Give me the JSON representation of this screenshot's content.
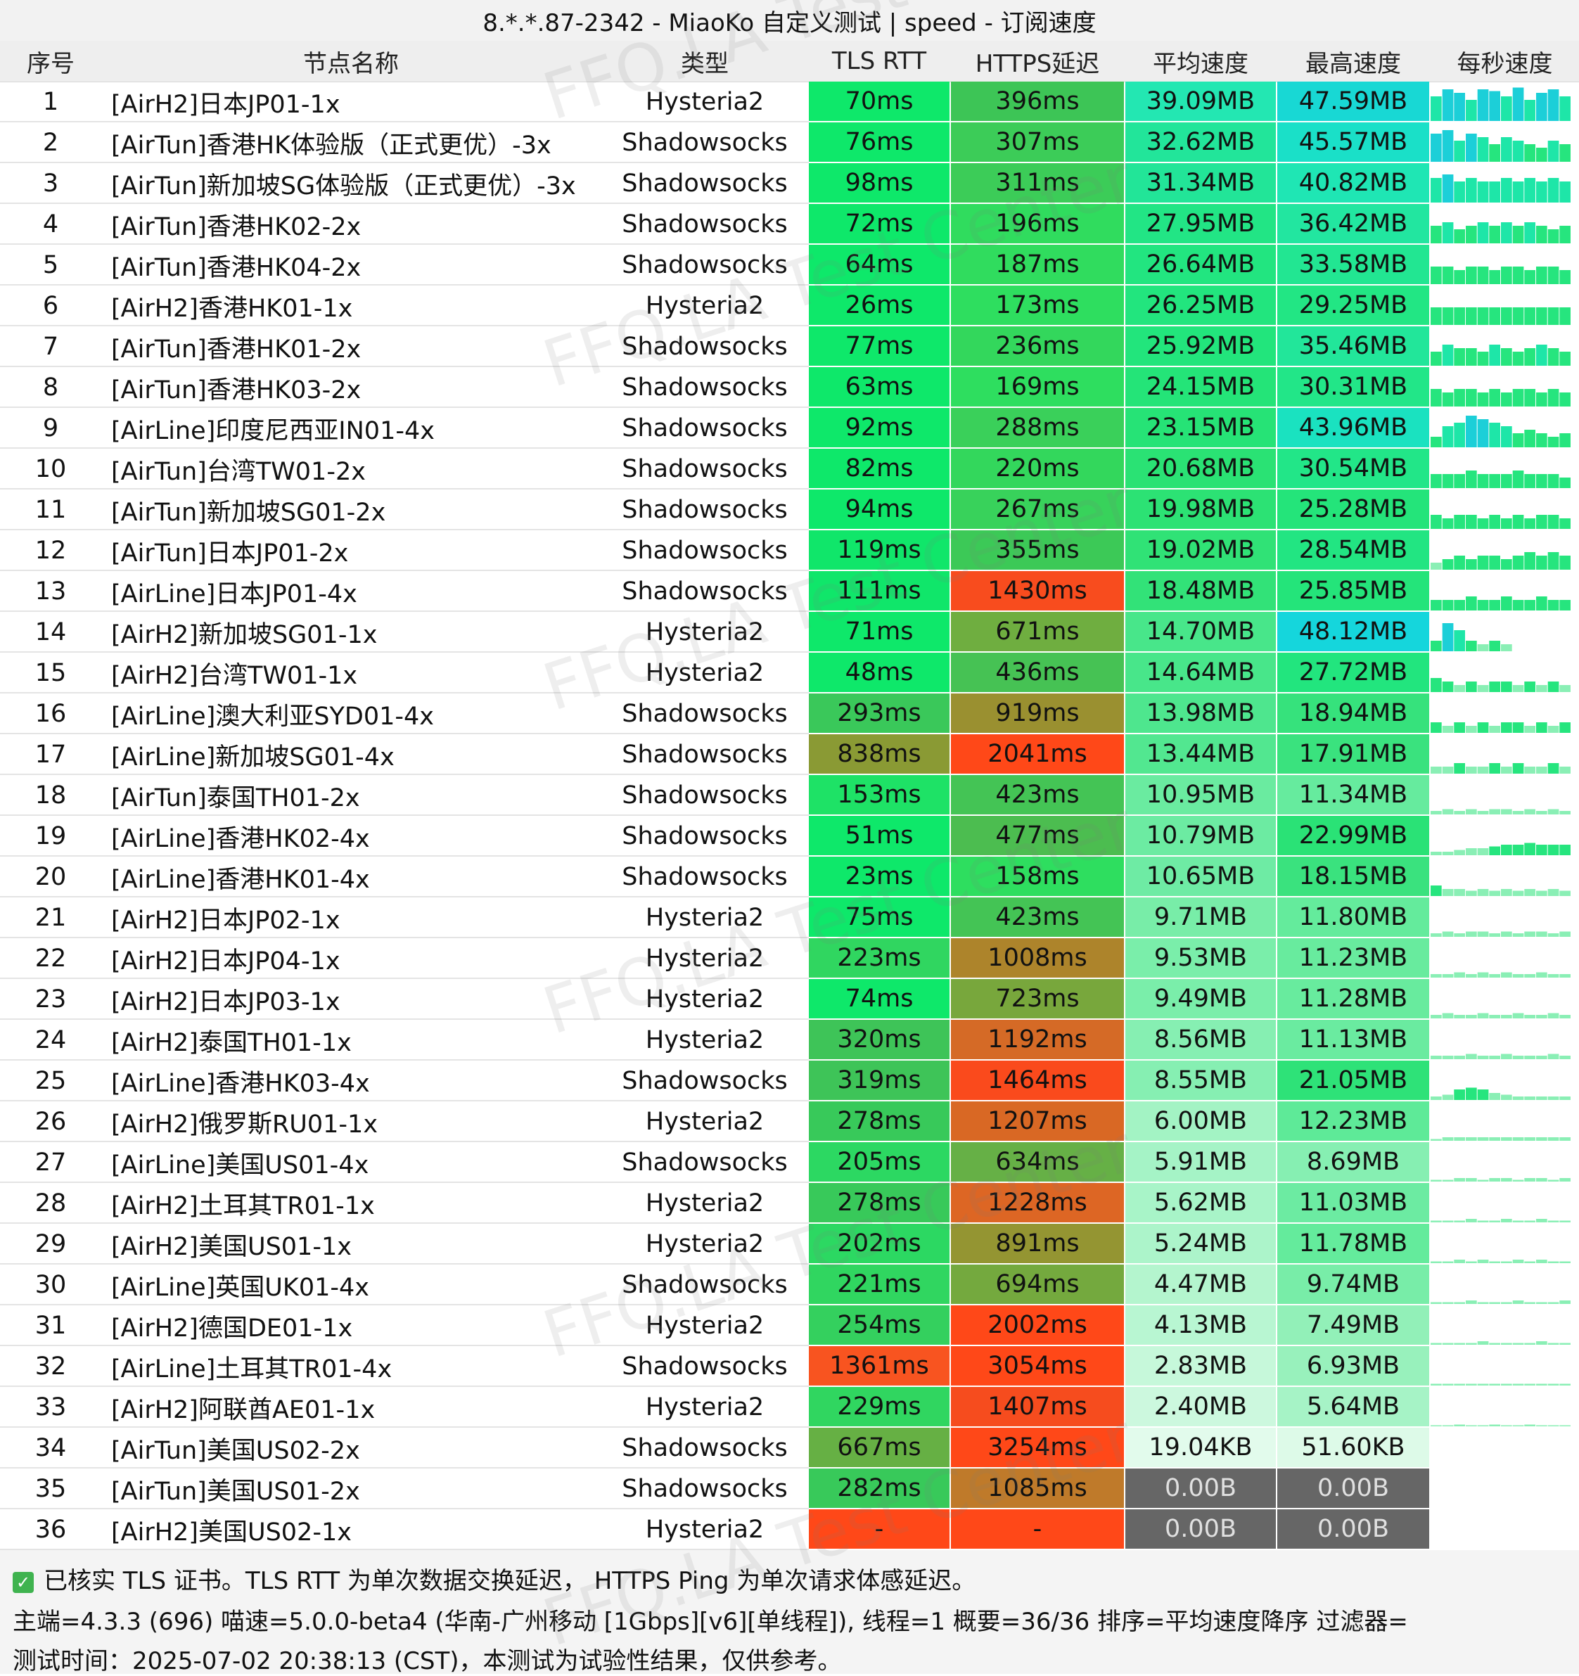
{
  "title": "8.*.*.87-2342 - MiaoKo 自定义测试 | speed - 订阅速度",
  "columns": [
    "序号",
    "节点名称",
    "类型",
    "TLS RTT",
    "HTTPS延迟",
    "平均速度",
    "最高速度",
    "每秒速度"
  ],
  "watermark": "FFQ.LA Test Center",
  "colors": {
    "latency_good": "#0ee86a",
    "latency_mid": "#6faa3a",
    "latency_high": "#b87a2a",
    "latency_bad": "#ff4a1a",
    "speed_fast": "#20e4c9",
    "speed_mid": "#22e07a",
    "speed_slow": "#aaf2c3",
    "speed_zero": "#666666"
  },
  "rows": [
    {
      "idx": "1",
      "name": "[AirH2]日本JP01-1x",
      "type": "Hysteria2",
      "tls": "70ms",
      "https": "396ms",
      "avg": "39.09MB",
      "max": "47.59MB",
      "tls_c": "#0ee86a",
      "https_c": "#3dc556",
      "avg_c": "#23e7b2",
      "max_c": "#18d8d4"
    },
    {
      "idx": "2",
      "name": "[AirTun]香港HK体验版（正式更优）-3x",
      "type": "Shadowsocks",
      "tls": "76ms",
      "https": "307ms",
      "avg": "32.62MB",
      "max": "45.57MB",
      "tls_c": "#0ee86a",
      "https_c": "#3ccc58",
      "avg_c": "#22e59a",
      "max_c": "#1ae0c8"
    },
    {
      "idx": "3",
      "name": "[AirTun]新加坡SG体验版（正式更优）-3x",
      "type": "Shadowsocks",
      "tls": "98ms",
      "https": "311ms",
      "avg": "31.34MB",
      "max": "40.82MB",
      "tls_c": "#0ee86a",
      "https_c": "#3ccc58",
      "avg_c": "#22e598",
      "max_c": "#1fe6b4"
    },
    {
      "idx": "4",
      "name": "[AirTun]香港HK02-2x",
      "type": "Shadowsocks",
      "tls": "72ms",
      "https": "196ms",
      "avg": "27.95MB",
      "max": "36.42MB",
      "tls_c": "#0ee86a",
      "https_c": "#30dc5e",
      "avg_c": "#22e585",
      "max_c": "#22e6a0"
    },
    {
      "idx": "5",
      "name": "[AirTun]香港HK04-2x",
      "type": "Shadowsocks",
      "tls": "64ms",
      "https": "187ms",
      "avg": "26.64MB",
      "max": "33.58MB",
      "tls_c": "#0ee86a",
      "https_c": "#30dc5e",
      "avg_c": "#22e580",
      "max_c": "#22e692"
    },
    {
      "idx": "6",
      "name": "[AirH2]香港HK01-1x",
      "type": "Hysteria2",
      "tls": "26ms",
      "https": "173ms",
      "avg": "26.25MB",
      "max": "29.25MB",
      "tls_c": "#0ee86a",
      "https_c": "#2ede5f",
      "avg_c": "#22e57e",
      "max_c": "#22e684"
    },
    {
      "idx": "7",
      "name": "[AirTun]香港HK01-2x",
      "type": "Shadowsocks",
      "tls": "77ms",
      "https": "236ms",
      "avg": "25.92MB",
      "max": "35.46MB",
      "tls_c": "#0ee86a",
      "https_c": "#33d75c",
      "avg_c": "#22e57c",
      "max_c": "#22e69a"
    },
    {
      "idx": "8",
      "name": "[AirTun]香港HK03-2x",
      "type": "Shadowsocks",
      "tls": "63ms",
      "https": "169ms",
      "avg": "24.15MB",
      "max": "30.31MB",
      "tls_c": "#0ee86a",
      "https_c": "#2ede5f",
      "avg_c": "#24e478",
      "max_c": "#22e688"
    },
    {
      "idx": "9",
      "name": "[AirLine]印度尼西亚IN01-4x",
      "type": "Shadowsocks",
      "tls": "92ms",
      "https": "288ms",
      "avg": "23.15MB",
      "max": "43.96MB",
      "tls_c": "#0ee86a",
      "https_c": "#3ad05a",
      "avg_c": "#26e376",
      "max_c": "#1ae2c0"
    },
    {
      "idx": "10",
      "name": "[AirTun]台湾TW01-2x",
      "type": "Shadowsocks",
      "tls": "82ms",
      "https": "220ms",
      "avg": "20.68MB",
      "max": "30.54MB",
      "tls_c": "#0ee86a",
      "https_c": "#33d75c",
      "avg_c": "#2ae274",
      "max_c": "#22e688"
    },
    {
      "idx": "11",
      "name": "[AirTun]新加坡SG01-2x",
      "type": "Shadowsocks",
      "tls": "94ms",
      "https": "267ms",
      "avg": "19.98MB",
      "max": "25.28MB",
      "tls_c": "#0ee86a",
      "https_c": "#38d25b",
      "avg_c": "#2ce274",
      "max_c": "#24e47a"
    },
    {
      "idx": "12",
      "name": "[AirTun]日本JP01-2x",
      "type": "Shadowsocks",
      "tls": "119ms",
      "https": "355ms",
      "avg": "19.02MB",
      "max": "28.54MB",
      "tls_c": "#10e66a",
      "https_c": "#3cc957",
      "avg_c": "#30e276",
      "max_c": "#22e582"
    },
    {
      "idx": "13",
      "name": "[AirLine]日本JP01-4x",
      "type": "Shadowsocks",
      "tls": "111ms",
      "https": "1430ms",
      "avg": "18.48MB",
      "max": "25.85MB",
      "tls_c": "#10e66a",
      "https_c": "#f84c1e",
      "avg_c": "#32e278",
      "max_c": "#24e47a"
    },
    {
      "idx": "14",
      "name": "[AirH2]新加坡SG01-1x",
      "type": "Hysteria2",
      "tls": "71ms",
      "https": "671ms",
      "avg": "14.70MB",
      "max": "48.12MB",
      "tls_c": "#0ee86a",
      "https_c": "#6fae40",
      "avg_c": "#48e68a",
      "max_c": "#15d6dc"
    },
    {
      "idx": "15",
      "name": "[AirH2]台湾TW01-1x",
      "type": "Hysteria2",
      "tls": "48ms",
      "https": "436ms",
      "avg": "14.64MB",
      "max": "27.72MB",
      "tls_c": "#0ee86a",
      "https_c": "#46c254",
      "avg_c": "#48e68a",
      "max_c": "#22e57e"
    },
    {
      "idx": "16",
      "name": "[AirLine]澳大利亚SYD01-4x",
      "type": "Shadowsocks",
      "tls": "293ms",
      "https": "919ms",
      "avg": "13.98MB",
      "max": "18.94MB",
      "tls_c": "#3ac85a",
      "https_c": "#9a9030",
      "avg_c": "#4ee68e",
      "max_c": "#36e27c"
    },
    {
      "idx": "17",
      "name": "[AirLine]新加坡SG01-4x",
      "type": "Shadowsocks",
      "tls": "838ms",
      "https": "2041ms",
      "avg": "13.44MB",
      "max": "17.91MB",
      "tls_c": "#8a9a34",
      "https_c": "#ff4818",
      "avg_c": "#52e790",
      "max_c": "#3ae27e"
    },
    {
      "idx": "18",
      "name": "[AirTun]泰国TH01-2x",
      "type": "Shadowsocks",
      "tls": "153ms",
      "https": "423ms",
      "avg": "10.95MB",
      "max": "11.34MB",
      "tls_c": "#1ee266",
      "https_c": "#44c455",
      "avg_c": "#6aeba0",
      "max_c": "#66eb9e"
    },
    {
      "idx": "19",
      "name": "[AirLine]香港HK02-4x",
      "type": "Shadowsocks",
      "tls": "51ms",
      "https": "477ms",
      "avg": "10.79MB",
      "max": "22.99MB",
      "tls_c": "#0ee86a",
      "https_c": "#4cbd50",
      "avg_c": "#6ceba2",
      "max_c": "#2ae276"
    },
    {
      "idx": "20",
      "name": "[AirLine]香港HK01-4x",
      "type": "Shadowsocks",
      "tls": "23ms",
      "https": "158ms",
      "avg": "10.65MB",
      "max": "18.15MB",
      "tls_c": "#0ee86a",
      "https_c": "#2ede5f",
      "avg_c": "#6eeba4",
      "max_c": "#3ae27e"
    },
    {
      "idx": "21",
      "name": "[AirH2]日本JP02-1x",
      "type": "Hysteria2",
      "tls": "75ms",
      "https": "423ms",
      "avg": "9.71MB",
      "max": "11.80MB",
      "tls_c": "#0ee86a",
      "https_c": "#44c455",
      "avg_c": "#78eda8",
      "max_c": "#64eb9c"
    },
    {
      "idx": "22",
      "name": "[AirH2]日本JP04-1x",
      "type": "Hysteria2",
      "tls": "223ms",
      "https": "1008ms",
      "avg": "9.53MB",
      "max": "11.23MB",
      "tls_c": "#30d660",
      "https_c": "#ad842b",
      "avg_c": "#7aeeaa",
      "max_c": "#68eb9e"
    },
    {
      "idx": "23",
      "name": "[AirH2]日本JP03-1x",
      "type": "Hysteria2",
      "tls": "74ms",
      "https": "723ms",
      "avg": "9.49MB",
      "max": "11.28MB",
      "tls_c": "#0ee86a",
      "https_c": "#78a73c",
      "avg_c": "#7aeeaa",
      "max_c": "#68eb9e"
    },
    {
      "idx": "24",
      "name": "[AirH2]泰国TH01-1x",
      "type": "Hysteria2",
      "tls": "320ms",
      "https": "1192ms",
      "avg": "8.56MB",
      "max": "11.13MB",
      "tls_c": "#3ec458",
      "https_c": "#d56a26",
      "avg_c": "#86efb2",
      "max_c": "#6aeba0"
    },
    {
      "idx": "25",
      "name": "[AirLine]香港HK03-4x",
      "type": "Shadowsocks",
      "tls": "319ms",
      "https": "1464ms",
      "avg": "8.55MB",
      "max": "21.05MB",
      "tls_c": "#3ec458",
      "https_c": "#fa4a1c",
      "avg_c": "#86efb2",
      "max_c": "#2ee278"
    },
    {
      "idx": "26",
      "name": "[AirH2]俄罗斯RU01-1x",
      "type": "Hysteria2",
      "tls": "278ms",
      "https": "1207ms",
      "avg": "6.00MB",
      "max": "12.23MB",
      "tls_c": "#38c95a",
      "https_c": "#d96824",
      "avg_c": "#a3f3c4",
      "max_c": "#5eea98"
    },
    {
      "idx": "27",
      "name": "[AirLine]美国US01-4x",
      "type": "Shadowsocks",
      "tls": "205ms",
      "https": "634ms",
      "avg": "5.91MB",
      "max": "8.69MB",
      "tls_c": "#2cd862",
      "https_c": "#66b046",
      "avg_c": "#a5f3c6",
      "max_c": "#86efb2"
    },
    {
      "idx": "28",
      "name": "[AirH2]土耳其TR01-1x",
      "type": "Hysteria2",
      "tls": "278ms",
      "https": "1228ms",
      "avg": "5.62MB",
      "max": "11.03MB",
      "tls_c": "#38c95a",
      "https_c": "#dd6624",
      "avg_c": "#a8f4c8",
      "max_c": "#6ceba2"
    },
    {
      "idx": "29",
      "name": "[AirH2]美国US01-1x",
      "type": "Hysteria2",
      "tls": "202ms",
      "https": "891ms",
      "avg": "5.24MB",
      "max": "11.78MB",
      "tls_c": "#2cd862",
      "https_c": "#949532",
      "avg_c": "#acf4ca",
      "max_c": "#64eb9c"
    },
    {
      "idx": "30",
      "name": "[AirLine]英国UK01-4x",
      "type": "Shadowsocks",
      "tls": "221ms",
      "https": "694ms",
      "avg": "4.47MB",
      "max": "9.74MB",
      "tls_c": "#30d660",
      "https_c": "#74a93e",
      "avg_c": "#b4f5ce",
      "max_c": "#78eda8"
    },
    {
      "idx": "31",
      "name": "[AirH2]德国DE01-1x",
      "type": "Hysteria2",
      "tls": "254ms",
      "https": "2002ms",
      "avg": "4.13MB",
      "max": "7.49MB",
      "tls_c": "#34d05e",
      "https_c": "#ff4818",
      "avg_c": "#b8f6d2",
      "max_c": "#92f0b8"
    },
    {
      "idx": "32",
      "name": "[AirLine]土耳其TR01-4x",
      "type": "Shadowsocks",
      "tls": "1361ms",
      "https": "3054ms",
      "avg": "2.83MB",
      "max": "6.93MB",
      "tls_c": "#f85420",
      "https_c": "#ff4818",
      "avg_c": "#c6f8da",
      "max_c": "#98f1bc"
    },
    {
      "idx": "33",
      "name": "[AirH2]阿联酋AE01-1x",
      "type": "Hysteria2",
      "tls": "229ms",
      "https": "1407ms",
      "avg": "2.40MB",
      "max": "5.64MB",
      "tls_c": "#30d660",
      "https_c": "#f64c1e",
      "avg_c": "#ccf8de",
      "max_c": "#a6f3c6"
    },
    {
      "idx": "34",
      "name": "[AirTun]美国US02-2x",
      "type": "Shadowsocks",
      "tls": "667ms",
      "https": "3254ms",
      "avg": "19.04KB",
      "max": "51.60KB",
      "tls_c": "#66b044",
      "https_c": "#ff4818",
      "avg_c": "#e2fbec",
      "max_c": "#ddfae8"
    },
    {
      "idx": "35",
      "name": "[AirTun]美国US01-2x",
      "type": "Shadowsocks",
      "tls": "282ms",
      "https": "1085ms",
      "avg": "0.00B",
      "max": "0.00B",
      "tls_c": "#38c95a",
      "https_c": "#bf7a2a",
      "avg_c": "#666666",
      "max_c": "#666666"
    },
    {
      "idx": "36",
      "name": "[AirH2]美国US02-1x",
      "type": "Hysteria2",
      "tls": "-",
      "https": "-",
      "avg": "0.00B",
      "max": "0.00B",
      "tls_c": "#ff4818",
      "https_c": "#ff4818",
      "avg_c": "#666666",
      "max_c": "#666666"
    }
  ],
  "per_second_sparks": [
    [
      0.7,
      0.9,
      0.8,
      0.6,
      0.9,
      0.85,
      0.7,
      0.95,
      0.6,
      0.8,
      0.9,
      0.7
    ],
    [
      0.8,
      0.9,
      0.6,
      0.8,
      0.7,
      0.5,
      0.7,
      0.6,
      0.5,
      0.4,
      0.6,
      0.5
    ],
    [
      0.7,
      0.8,
      0.6,
      0.7,
      0.6,
      0.6,
      0.7,
      0.6,
      0.7,
      0.6,
      0.7,
      0.6
    ],
    [
      0.5,
      0.6,
      0.4,
      0.5,
      0.6,
      0.5,
      0.6,
      0.5,
      0.6,
      0.5,
      0.4,
      0.5
    ],
    [
      0.5,
      0.5,
      0.4,
      0.5,
      0.5,
      0.4,
      0.5,
      0.5,
      0.4,
      0.5,
      0.5,
      0.4
    ],
    [
      0.5,
      0.5,
      0.5,
      0.5,
      0.5,
      0.5,
      0.5,
      0.5,
      0.5,
      0.5,
      0.5,
      0.5
    ],
    [
      0.4,
      0.6,
      0.5,
      0.5,
      0.4,
      0.6,
      0.5,
      0.4,
      0.5,
      0.6,
      0.5,
      0.4
    ],
    [
      0.5,
      0.4,
      0.5,
      0.5,
      0.4,
      0.5,
      0.4,
      0.5,
      0.5,
      0.4,
      0.5,
      0.4
    ],
    [
      0.3,
      0.6,
      0.7,
      0.9,
      0.8,
      0.7,
      0.6,
      0.4,
      0.5,
      0.4,
      0.3,
      0.4
    ],
    [
      0.4,
      0.4,
      0.4,
      0.5,
      0.4,
      0.4,
      0.4,
      0.5,
      0.4,
      0.4,
      0.4,
      0.3
    ],
    [
      0.4,
      0.3,
      0.4,
      0.4,
      0.3,
      0.4,
      0.3,
      0.4,
      0.3,
      0.4,
      0.4,
      0.3
    ],
    [
      0.2,
      0.3,
      0.4,
      0.3,
      0.4,
      0.4,
      0.3,
      0.4,
      0.5,
      0.4,
      0.5,
      0.4
    ],
    [
      0.3,
      0.3,
      0.3,
      0.4,
      0.3,
      0.3,
      0.4,
      0.3,
      0.3,
      0.4,
      0.3,
      0.3
    ],
    [
      0.3,
      0.8,
      0.6,
      0.3,
      0.2,
      0.3,
      0.2,
      0.0,
      0.0,
      0.0,
      0.0,
      0.0
    ],
    [
      0.4,
      0.3,
      0.2,
      0.3,
      0.2,
      0.3,
      0.3,
      0.2,
      0.3,
      0.2,
      0.3,
      0.2
    ],
    [
      0.3,
      0.2,
      0.3,
      0.2,
      0.3,
      0.2,
      0.3,
      0.3,
      0.2,
      0.3,
      0.2,
      0.3
    ],
    [
      0.2,
      0.2,
      0.3,
      0.2,
      0.2,
      0.3,
      0.2,
      0.3,
      0.2,
      0.2,
      0.3,
      0.2
    ],
    [
      0.1,
      0.15,
      0.1,
      0.15,
      0.1,
      0.15,
      0.15,
      0.1,
      0.15,
      0.1,
      0.15,
      0.1
    ],
    [
      0.1,
      0.1,
      0.15,
      0.2,
      0.2,
      0.25,
      0.3,
      0.3,
      0.35,
      0.3,
      0.3,
      0.3
    ],
    [
      0.3,
      0.2,
      0.2,
      0.15,
      0.2,
      0.15,
      0.2,
      0.15,
      0.2,
      0.15,
      0.2,
      0.15
    ],
    [
      0.1,
      0.15,
      0.1,
      0.15,
      0.15,
      0.1,
      0.15,
      0.1,
      0.15,
      0.15,
      0.1,
      0.15
    ],
    [
      0.1,
      0.1,
      0.15,
      0.1,
      0.15,
      0.1,
      0.15,
      0.1,
      0.1,
      0.15,
      0.1,
      0.1
    ],
    [
      0.1,
      0.15,
      0.1,
      0.1,
      0.15,
      0.1,
      0.1,
      0.15,
      0.1,
      0.1,
      0.15,
      0.1
    ],
    [
      0.1,
      0.1,
      0.1,
      0.15,
      0.1,
      0.1,
      0.15,
      0.1,
      0.1,
      0.1,
      0.15,
      0.1
    ],
    [
      0.1,
      0.15,
      0.3,
      0.35,
      0.3,
      0.2,
      0.15,
      0.1,
      0.1,
      0.1,
      0.1,
      0.1
    ],
    [
      0.05,
      0.1,
      0.1,
      0.1,
      0.1,
      0.1,
      0.1,
      0.1,
      0.1,
      0.1,
      0.1,
      0.1
    ],
    [
      0.05,
      0.05,
      0.1,
      0.1,
      0.05,
      0.1,
      0.1,
      0.05,
      0.1,
      0.1,
      0.05,
      0.1
    ],
    [
      0.05,
      0.05,
      0.05,
      0.1,
      0.05,
      0.05,
      0.1,
      0.05,
      0.05,
      0.1,
      0.05,
      0.05
    ],
    [
      0.05,
      0.05,
      0.1,
      0.05,
      0.1,
      0.05,
      0.05,
      0.1,
      0.05,
      0.1,
      0.05,
      0.05
    ],
    [
      0.05,
      0.05,
      0.05,
      0.1,
      0.05,
      0.05,
      0.05,
      0.1,
      0.05,
      0.05,
      0.05,
      0.1
    ],
    [
      0.05,
      0.05,
      0.05,
      0.05,
      0.1,
      0.05,
      0.05,
      0.05,
      0.05,
      0.1,
      0.05,
      0.05
    ],
    [
      0.05,
      0.05,
      0.05,
      0.05,
      0.05,
      0.05,
      0.05,
      0.05,
      0.05,
      0.05,
      0.05,
      0.05
    ],
    [
      0.03,
      0.03,
      0.05,
      0.03,
      0.03,
      0.05,
      0.03,
      0.03,
      0.05,
      0.03,
      0.03,
      0.03
    ],
    [
      0.0,
      0.0,
      0.0,
      0.0,
      0.0,
      0.0,
      0.0,
      0.0,
      0.0,
      0.0,
      0.0,
      0.0
    ],
    [
      0.0,
      0.0,
      0.0,
      0.0,
      0.0,
      0.0,
      0.0,
      0.0,
      0.0,
      0.0,
      0.0,
      0.0
    ],
    [
      0.0,
      0.0,
      0.0,
      0.0,
      0.0,
      0.0,
      0.0,
      0.0,
      0.0,
      0.0,
      0.0,
      0.0
    ]
  ],
  "footer": {
    "line1": "已核实 TLS 证书。TLS RTT 为单次数据交换延迟， HTTPS Ping 为单次请求体感延迟。",
    "line2": "主端=4.3.3 (696) 喵速=5.0.0-beta4 (华南-广州移动 [1Gbps][v6][单线程]), 线程=1 概要=36/36 排序=平均速度降序 过滤器=",
    "line3": "测试时间：2025-07-02 20:38:13 (CST)，本测试为试验性结果，仅供参考。"
  }
}
